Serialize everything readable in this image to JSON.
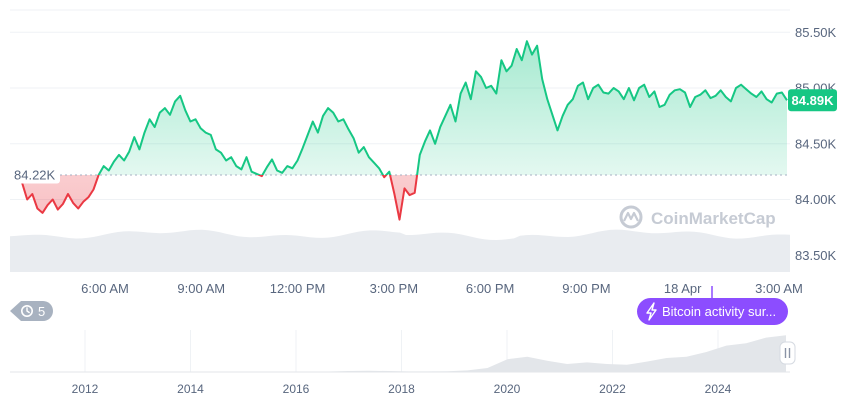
{
  "chart_data": {
    "type": "area",
    "price_axis": {
      "tick_labels": [
        "85.50K",
        "85.00K",
        "84.50K",
        "84.00K",
        "83.50K"
      ],
      "tick_values": [
        85500,
        85000,
        84500,
        84000,
        83500
      ],
      "ylim": [
        83350,
        85700
      ]
    },
    "time_axis": {
      "tick_labels": [
        "6:00 AM",
        "9:00 AM",
        "12:00 PM",
        "3:00 PM",
        "6:00 PM",
        "9:00 PM",
        "18 Apr",
        "3:00 AM"
      ]
    },
    "reference_value": 84220,
    "reference_label": "84.22K",
    "current_value": 84890,
    "current_label": "84.89K",
    "series_values": [
      84220,
      84150,
      84000,
      84050,
      83920,
      83880,
      83950,
      84000,
      83910,
      83960,
      84050,
      83970,
      83920,
      83980,
      84020,
      84090,
      84220,
      84300,
      84260,
      84340,
      84400,
      84350,
      84430,
      84560,
      84450,
      84600,
      84720,
      84650,
      84780,
      84820,
      84760,
      84880,
      84930,
      84800,
      84700,
      84720,
      84640,
      84600,
      84580,
      84450,
      84420,
      84350,
      84380,
      84300,
      84270,
      84380,
      84250,
      84230,
      84210,
      84290,
      84360,
      84260,
      84240,
      84300,
      84280,
      84350,
      84460,
      84580,
      84700,
      84600,
      84750,
      84820,
      84780,
      84700,
      84720,
      84630,
      84550,
      84420,
      84470,
      84380,
      84330,
      84280,
      84200,
      84250,
      84050,
      83820,
      84100,
      84040,
      84060,
      84400,
      84520,
      84620,
      84500,
      84650,
      84750,
      84850,
      84700,
      84950,
      85050,
      84900,
      85150,
      85100,
      85000,
      85020,
      84950,
      85250,
      85150,
      85200,
      85350,
      85250,
      85420,
      85300,
      85380,
      85080,
      84900,
      84760,
      84620,
      84750,
      84850,
      84900,
      85020,
      85050,
      84900,
      85000,
      85030,
      84960,
      84950,
      85000,
      84970,
      84900,
      85000,
      84890,
      85000,
      85030,
      84920,
      84970,
      84830,
      84850,
      84940,
      84980,
      84990,
      84960,
      84830,
      84920,
      84940,
      84980,
      84910,
      84930,
      84980,
      84920,
      84880,
      85000,
      85030,
      84990,
      84950,
      84920,
      84970,
      84900,
      84870,
      84950,
      84960,
      84890
    ],
    "volume_label": "",
    "overview": {
      "year_labels": [
        "2012",
        "2014",
        "2016",
        "2018",
        "2020",
        "2022",
        "2024"
      ],
      "trend": [
        0,
        0,
        0,
        0,
        0,
        0,
        0.002,
        0.002,
        0.003,
        0.003,
        0.004,
        0.004,
        0.004,
        0.004,
        0.005,
        0.006,
        0.012,
        0.025,
        0.03,
        0.024,
        0.016,
        0.014,
        0.02,
        0.04,
        0.1,
        0.32,
        0.38,
        0.28,
        0.2,
        0.24,
        0.2,
        0.18,
        0.26,
        0.35,
        0.38,
        0.5,
        0.66,
        0.72,
        0.86,
        0.92
      ]
    },
    "watermark": "CoinMarketCap"
  },
  "ui": {
    "history_count": "5",
    "event_badge": "Bitcoin activity sur...",
    "pause_icon": "pause-icon",
    "history_icon": "history-clock-icon",
    "event_icon": "lightning-icon"
  },
  "colors": {
    "up": "#16c784",
    "down": "#ea3943",
    "event": "#8c4dff",
    "grid": "#eff2f5",
    "text": "#58667e"
  }
}
